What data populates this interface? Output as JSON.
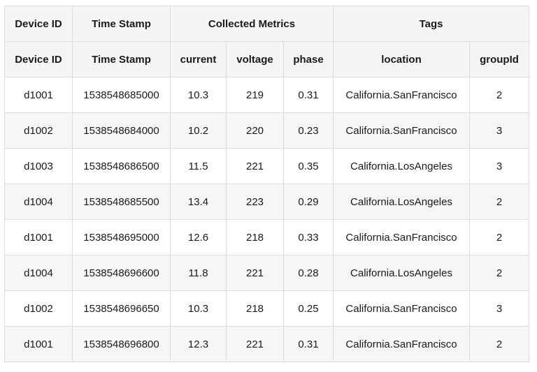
{
  "table": {
    "group_headers": [
      "Device ID",
      "Time Stamp",
      "Collected Metrics",
      "Tags"
    ],
    "columns": [
      "Device ID",
      "Time Stamp",
      "current",
      "voltage",
      "phase",
      "location",
      "groupId"
    ],
    "rows": [
      [
        "d1001",
        "1538548685000",
        "10.3",
        "219",
        "0.31",
        "California.SanFrancisco",
        "2"
      ],
      [
        "d1002",
        "1538548684000",
        "10.2",
        "220",
        "0.23",
        "California.SanFrancisco",
        "3"
      ],
      [
        "d1003",
        "1538548686500",
        "11.5",
        "221",
        "0.35",
        "California.LosAngeles",
        "3"
      ],
      [
        "d1004",
        "1538548685500",
        "13.4",
        "223",
        "0.29",
        "California.LosAngeles",
        "2"
      ],
      [
        "d1001",
        "1538548695000",
        "12.6",
        "218",
        "0.33",
        "California.SanFrancisco",
        "2"
      ],
      [
        "d1004",
        "1538548696600",
        "11.8",
        "221",
        "0.28",
        "California.LosAngeles",
        "2"
      ],
      [
        "d1002",
        "1538548696650",
        "10.3",
        "218",
        "0.25",
        "California.SanFrancisco",
        "3"
      ],
      [
        "d1001",
        "1538548696800",
        "12.3",
        "221",
        "0.31",
        "California.SanFrancisco",
        "2"
      ]
    ]
  }
}
